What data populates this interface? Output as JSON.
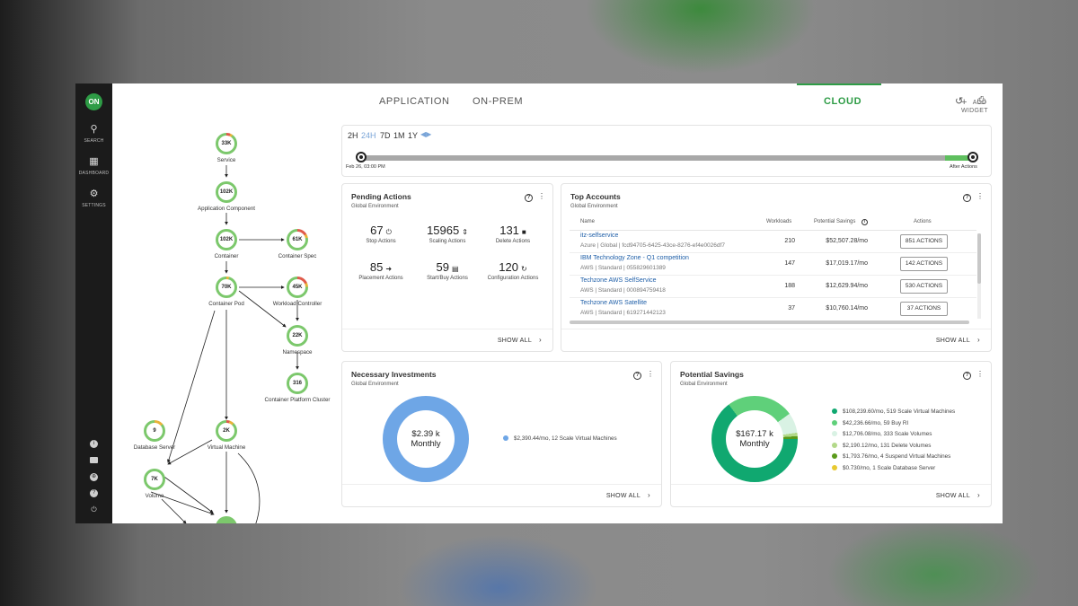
{
  "nav": {
    "logo": "ON",
    "search": "SEARCH",
    "dashboard": "DASHBOARD",
    "settings": "SETTINGS"
  },
  "topology": {
    "nodes": [
      {
        "id": "service",
        "value": "33K",
        "label": "Service"
      },
      {
        "id": "app-component",
        "value": "102K",
        "label": "Application Component"
      },
      {
        "id": "container",
        "value": "102K",
        "label": "Container"
      },
      {
        "id": "container-spec",
        "value": "61K",
        "label": "Container Spec"
      },
      {
        "id": "container-pod",
        "value": "70K",
        "label": "Container Pod"
      },
      {
        "id": "workload-controller",
        "value": "45K",
        "label": "Workload Controller"
      },
      {
        "id": "namespace",
        "value": "22K",
        "label": "Namespace"
      },
      {
        "id": "container-platform-cluster",
        "value": "316",
        "label": "Container Platform Cluster"
      },
      {
        "id": "database-server",
        "value": "9",
        "label": "Database Server"
      },
      {
        "id": "virtual-machine",
        "value": "2K",
        "label": "Virtual Machine"
      },
      {
        "id": "volume",
        "value": "7K",
        "label": "Volume"
      }
    ]
  },
  "tabs": [
    "APPLICATION",
    "ON-PREM",
    "CLOUD"
  ],
  "active_tab": "CLOUD",
  "header": {
    "add_widget": "ADD WIDGET",
    "add_icon": "plus-icon",
    "history_icon": "history-icon",
    "print_icon": "print-icon"
  },
  "timeline": {
    "frames": [
      "2H",
      "24H",
      "7D",
      "1M",
      "1Y"
    ],
    "selected": "24H",
    "start_label": "Feb 26, 03:00 PM",
    "end_label": "After Actions"
  },
  "pending_actions": {
    "title": "Pending Actions",
    "subtitle": "Global Environment",
    "items": [
      {
        "count": "67",
        "label": "Stop Actions",
        "icon": "power-icon"
      },
      {
        "count": "15965",
        "label": "Scaling Actions",
        "icon": "scale-icon"
      },
      {
        "count": "131",
        "label": "Delete Actions",
        "icon": "trash-icon"
      },
      {
        "count": "85",
        "label": "Placement Actions",
        "icon": "arrow-right-icon"
      },
      {
        "count": "59",
        "label": "Start/Buy Actions",
        "icon": "list-icon"
      },
      {
        "count": "120",
        "label": "Configuration Actions",
        "icon": "refresh-icon"
      }
    ],
    "show_all": "SHOW ALL"
  },
  "top_accounts": {
    "title": "Top Accounts",
    "subtitle": "Global Environment",
    "columns": {
      "name": "Name",
      "workloads": "Workloads",
      "savings": "Potential Savings",
      "actions": "Actions"
    },
    "rows": [
      {
        "name": "itz-selfservice",
        "sub": "Azure | Global | fcd94705-6425-43ce-8276-ef4e0026df7",
        "workloads": "210",
        "savings": "$52,507.28/mo",
        "actions": "851 ACTIONS"
      },
      {
        "name": "IBM Technology Zone - Q1 competition",
        "sub": "AWS | Standard | 055829601389",
        "workloads": "147",
        "savings": "$17,019.17/mo",
        "actions": "142 ACTIONS"
      },
      {
        "name": "Techzone AWS SelfService",
        "sub": "AWS | Standard | 000894759418",
        "workloads": "188",
        "savings": "$12,629.94/mo",
        "actions": "530 ACTIONS"
      },
      {
        "name": "Techzone AWS Satellite",
        "sub": "AWS | Standard | 619271442123",
        "workloads": "37",
        "savings": "$10,760.14/mo",
        "actions": "37 ACTIONS"
      }
    ],
    "show_all": "SHOW ALL"
  },
  "necessary_investments": {
    "title": "Necessary Investments",
    "subtitle": "Global Environment",
    "center_value": "$2.39 k",
    "center_label": "Monthly",
    "legend": [
      {
        "label": "$2,390.44/mo, 12 Scale Virtual Machines",
        "color": "#6ea6e6"
      }
    ],
    "show_all": "SHOW ALL"
  },
  "potential_savings": {
    "title": "Potential Savings",
    "subtitle": "Global Environment",
    "center_value": "$167.17 k",
    "center_label": "Monthly",
    "legend": [
      {
        "label": "$108,239.60/mo, 519 Scale Virtual Machines",
        "color": "#10a870",
        "value": 108239.6
      },
      {
        "label": "$42,236.66/mo, 59 Buy RI",
        "color": "#5fd07a",
        "value": 42236.66
      },
      {
        "label": "$12,706.08/mo, 333 Scale Volumes",
        "color": "#d9f2e4",
        "value": 12706.08
      },
      {
        "label": "$2,190.12/mo, 131 Delete Volumes",
        "color": "#b3d98a",
        "value": 2190.12
      },
      {
        "label": "$1,793.76/mo, 4 Suspend Virtual Machines",
        "color": "#5a9a1a",
        "value": 1793.76
      },
      {
        "label": "$0.730/mo, 1 Scale Database Server",
        "color": "#e8c930",
        "value": 0.73
      }
    ],
    "show_all": "SHOW ALL"
  }
}
